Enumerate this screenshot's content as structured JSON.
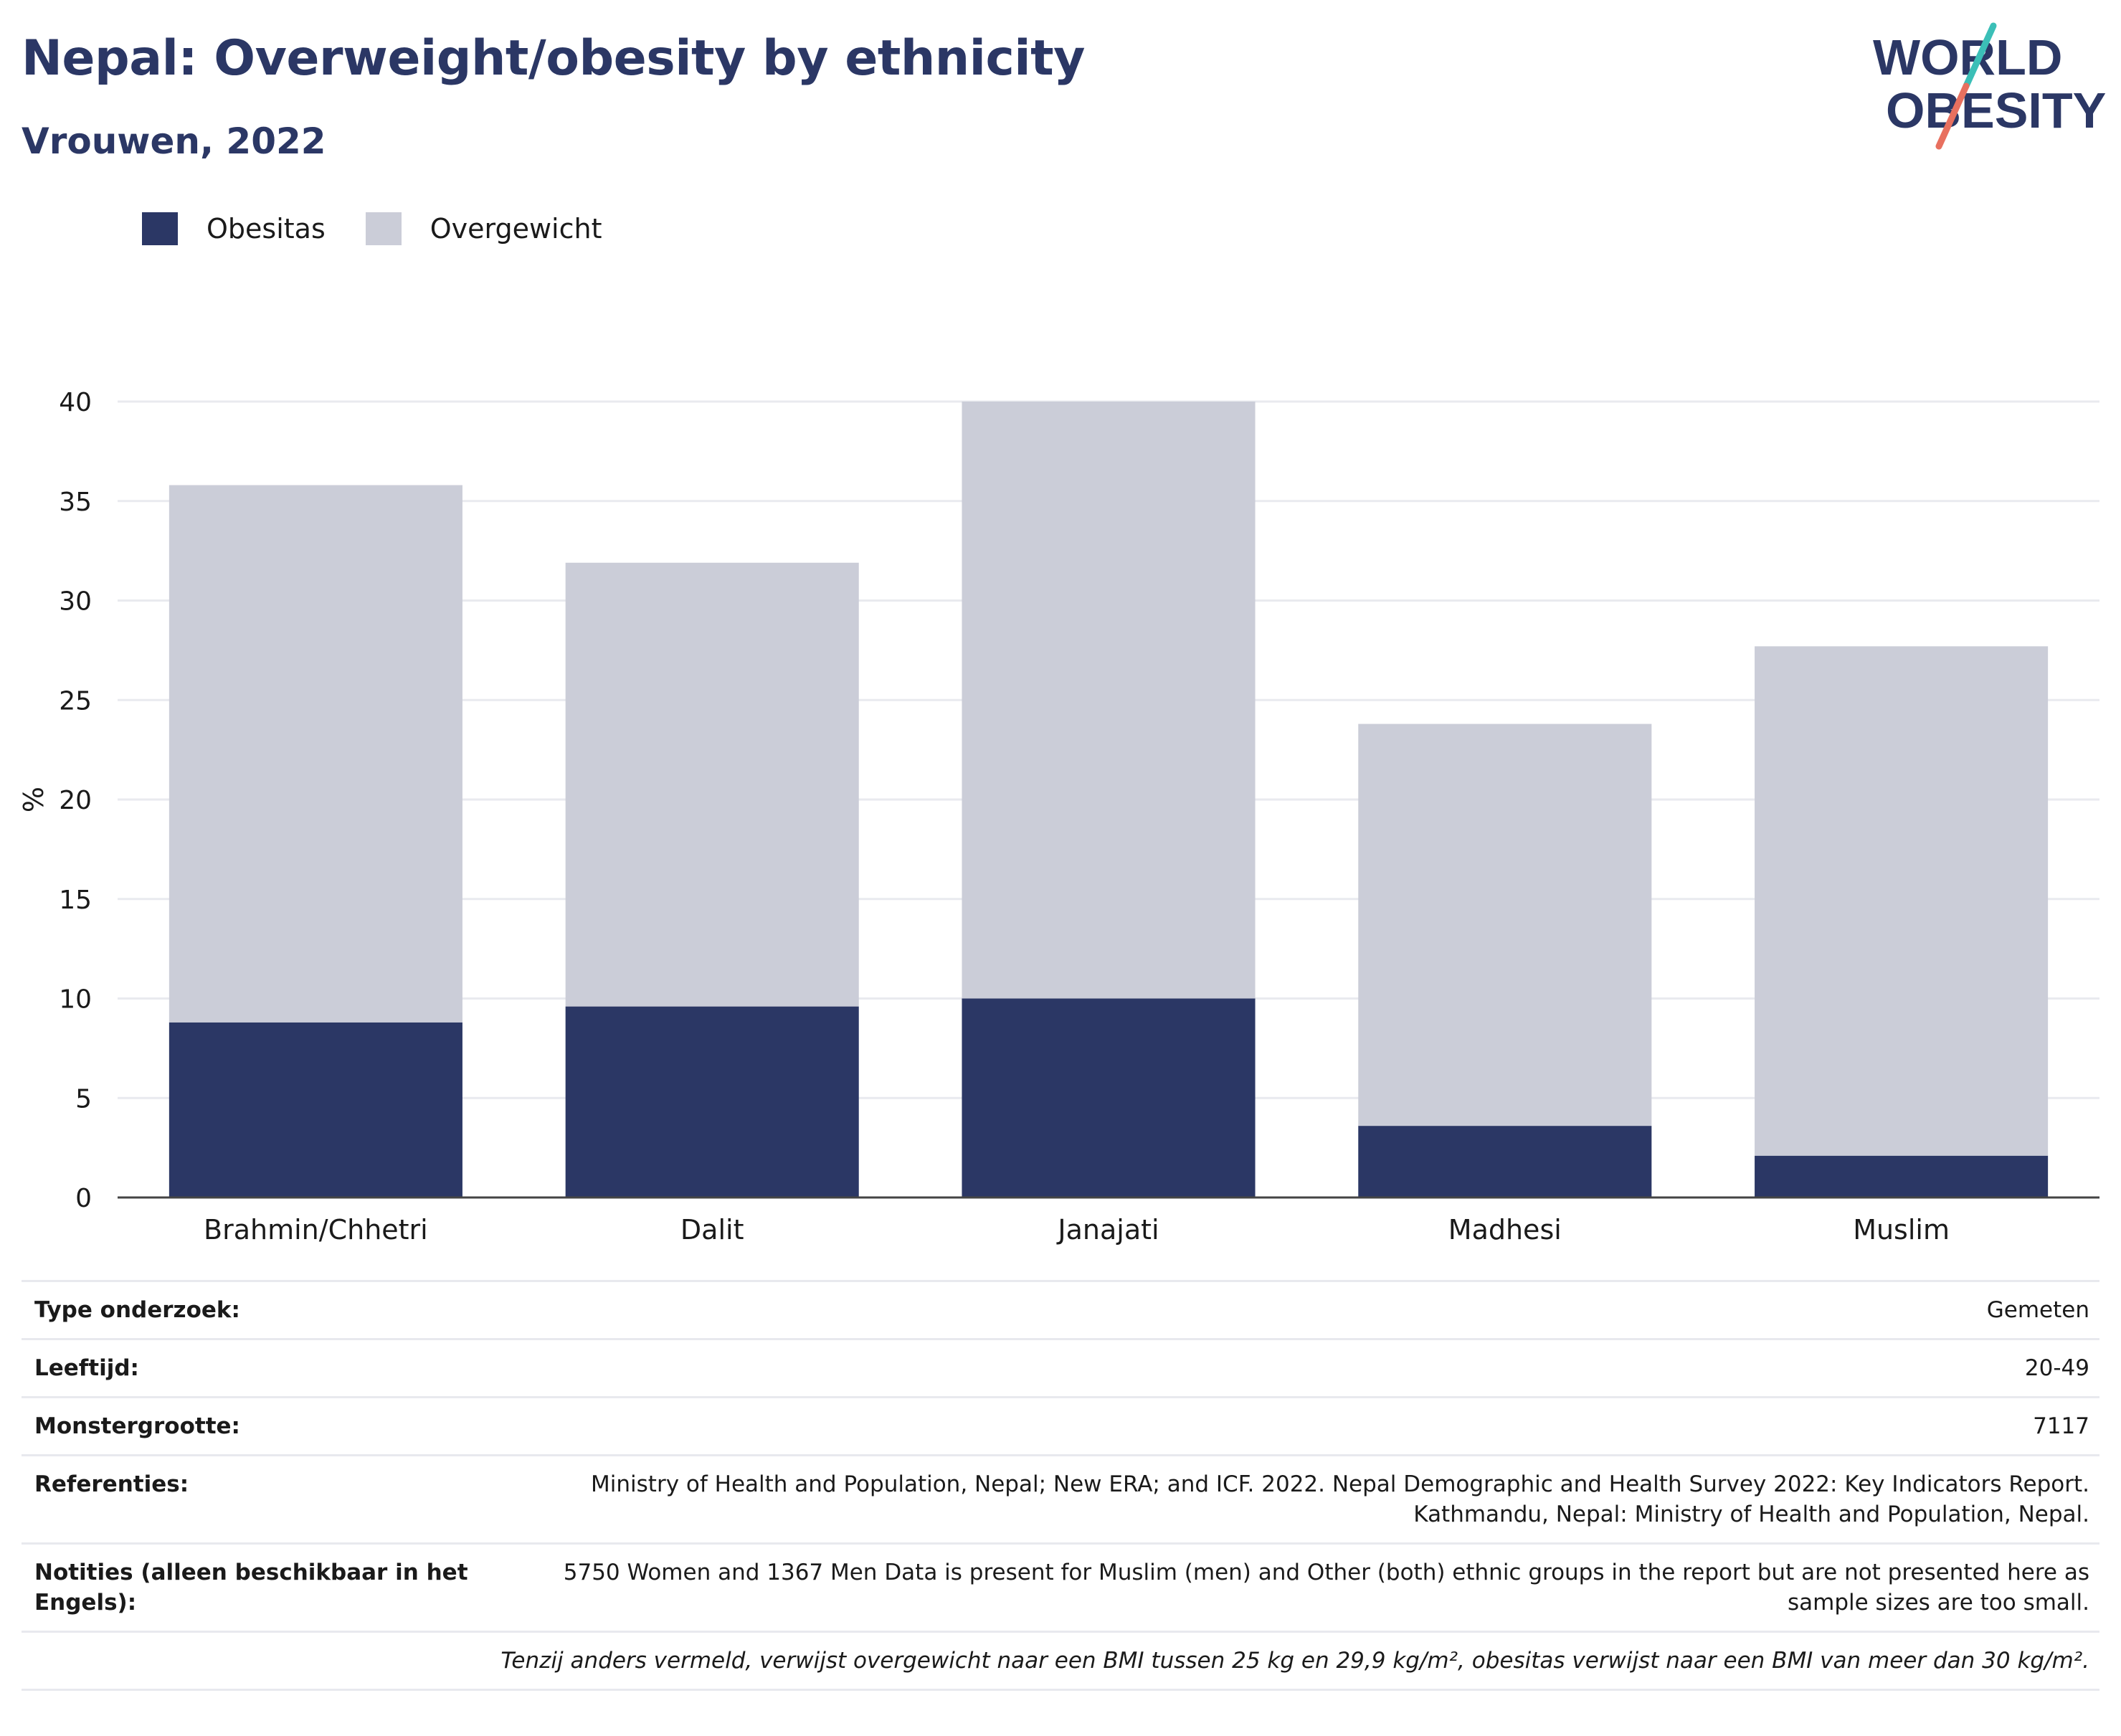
{
  "title": "Nepal: Overweight/obesity by ethnicity",
  "subtitle": "Vrouwen, 2022",
  "logo": {
    "line1": "WORLD",
    "line2": "OBESITY",
    "colors": {
      "text": "#2b3765",
      "accent_teal": "#3bbfb7",
      "accent_red": "#e8705f"
    }
  },
  "colors": {
    "obesity": "#2b3765",
    "overweight": "#cbcdd8",
    "grid": "#e9eaef",
    "axis": "#444444"
  },
  "chart_data": {
    "type": "bar",
    "stacked": true,
    "categories": [
      "Brahmin/Chhetri",
      "Dalit",
      "Janajati",
      "Madhesi",
      "Muslim"
    ],
    "series": [
      {
        "name": "Obesitas",
        "values": [
          8.8,
          9.6,
          10.0,
          3.6,
          2.1
        ],
        "color": "#2b3765"
      },
      {
        "name": "Overgewicht",
        "values": [
          27.0,
          22.3,
          30.0,
          20.2,
          25.6
        ],
        "color": "#cbcdd8"
      }
    ],
    "ylabel": "%",
    "xlabel": "",
    "ylim": [
      0,
      40
    ],
    "yticks": [
      0,
      5,
      10,
      15,
      20,
      25,
      30,
      35,
      40
    ],
    "grid": true,
    "legend_position": "top-left"
  },
  "legend": {
    "items": [
      "Obesitas",
      "Overgewicht"
    ]
  },
  "meta": [
    {
      "key": "Type onderzoek:",
      "value": "Gemeten"
    },
    {
      "key": "Leeftijd:",
      "value": "20-49"
    },
    {
      "key": "Monstergrootte:",
      "value": "7117"
    },
    {
      "key": "Referenties:",
      "value": "Ministry of Health and Population, Nepal; New ERA; and ICF. 2022. Nepal Demographic and Health Survey 2022: Key Indicators Report. Kathmandu, Nepal: Ministry of Health and Population, Nepal."
    },
    {
      "key": "Notities (alleen beschikbaar in het Engels):",
      "value": "5750 Women and 1367 Men Data is present for Muslim (men) and Other (both) ethnic groups in the report but are not presented here as sample sizes are too small."
    }
  ],
  "footnote": "Tenzij anders vermeld, verwijst overgewicht naar een BMI tussen 25 kg en 29,9 kg/m², obesitas verwijst naar een BMI van meer dan 30 kg/m²."
}
